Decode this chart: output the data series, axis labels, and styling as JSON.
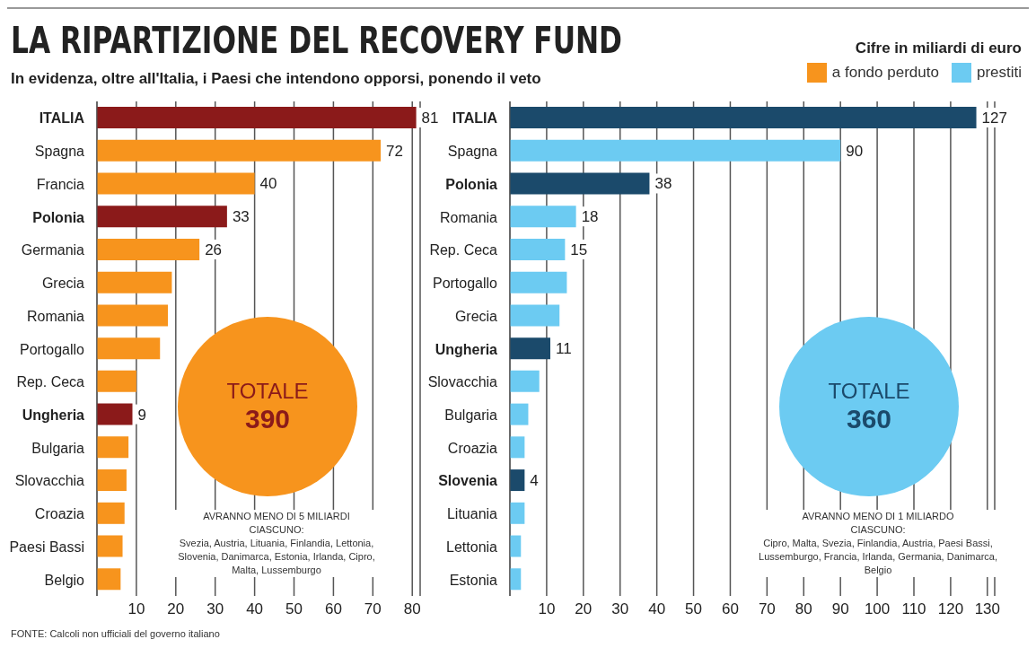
{
  "chart_data": [
    {
      "type": "bar",
      "orientation": "horizontal",
      "title": "LA RIPARTIZIONE DEL RECOVERY FUND",
      "subtitle": "In evidenza, oltre all'Italia, i Paesi che intendono opporsi, ponendo il veto",
      "legend_title": "Cifre in miliardi di euro",
      "legend": "top right",
      "grid": "x",
      "categories": [
        "ITALIA",
        "Spagna",
        "Francia",
        "Polonia",
        "Germania",
        "Grecia",
        "Romania",
        "Portogallo",
        "Rep. Ceca",
        "Ungheria",
        "Bulgaria",
        "Slovacchia",
        "Croazia",
        "Paesi Bassi",
        "Belgio"
      ],
      "series": [
        {
          "name": "a fondo perduto",
          "color": "#f7941d",
          "values": [
            81,
            72,
            40,
            33,
            26,
            19,
            18,
            16,
            10,
            9,
            8,
            7.5,
            7,
            6.5,
            6
          ],
          "colors": [
            "#8b1a1a",
            "#f7941d",
            "#f7941d",
            "#8b1a1a",
            "#f7941d",
            "#f7941d",
            "#f7941d",
            "#f7941d",
            "#f7941d",
            "#8b1a1a",
            "#f7941d",
            "#f7941d",
            "#f7941d",
            "#f7941d",
            "#f7941d"
          ],
          "value_labels": [
            "81",
            "72",
            "40",
            "33",
            "26",
            null,
            null,
            null,
            null,
            "9",
            null,
            null,
            null,
            null,
            null
          ]
        }
      ],
      "xlim": [
        0,
        82
      ],
      "xticks": [
        10,
        20,
        30,
        40,
        50,
        60,
        70,
        80
      ],
      "annotations": [
        "TOTALE",
        "390",
        "AVRANNO MENO DI 5 MILIARDI CIASCUNO:",
        "Svezia, Austria, Lituania, Finlandia, Lettonia, Slovenia, Danimarca, Estonia, Irlanda, Cipro, Malta, Lussemburgo",
        "FONTE: Calcoli non ufficiali del governo italiano"
      ]
    },
    {
      "type": "bar",
      "orientation": "horizontal",
      "legend": "top right",
      "grid": "x",
      "categories": [
        "ITALIA",
        "Spagna",
        "Polonia",
        "Romania",
        "Rep. Ceca",
        "Portogallo",
        "Grecia",
        "Ungheria",
        "Slovacchia",
        "Bulgaria",
        "Croazia",
        "Slovenia",
        "Lituania",
        "Lettonia",
        "Estonia"
      ],
      "series": [
        {
          "name": "prestiti",
          "color": "#6ccbf2",
          "values": [
            127,
            90,
            38,
            18,
            15,
            15.5,
            13.5,
            11,
            8,
            5,
            4,
            4,
            4,
            3,
            3
          ],
          "colors": [
            "#1b4a6b",
            "#6ccbf2",
            "#1b4a6b",
            "#6ccbf2",
            "#6ccbf2",
            "#6ccbf2",
            "#6ccbf2",
            "#1b4a6b",
            "#6ccbf2",
            "#6ccbf2",
            "#6ccbf2",
            "#1b4a6b",
            "#6ccbf2",
            "#6ccbf2",
            "#6ccbf2"
          ],
          "value_labels": [
            "127",
            "90",
            "38",
            "18",
            "15",
            null,
            null,
            "11",
            null,
            null,
            null,
            "4",
            null,
            null,
            null
          ]
        }
      ],
      "xlim": [
        0,
        132
      ],
      "xticks": [
        10,
        20,
        30,
        40,
        50,
        60,
        70,
        80,
        90,
        100,
        110,
        120,
        130
      ],
      "annotations": [
        "TOTALE",
        "360",
        "AVRANNO MENO DI 1 MILIARDO CIASCUNO:",
        "Cipro, Malta, Svezia, Finlandia, Austria, Paesi Bassi, Lussemburgo, Francia, Irlanda, Germania, Danimarca, Belgio"
      ]
    }
  ]
}
